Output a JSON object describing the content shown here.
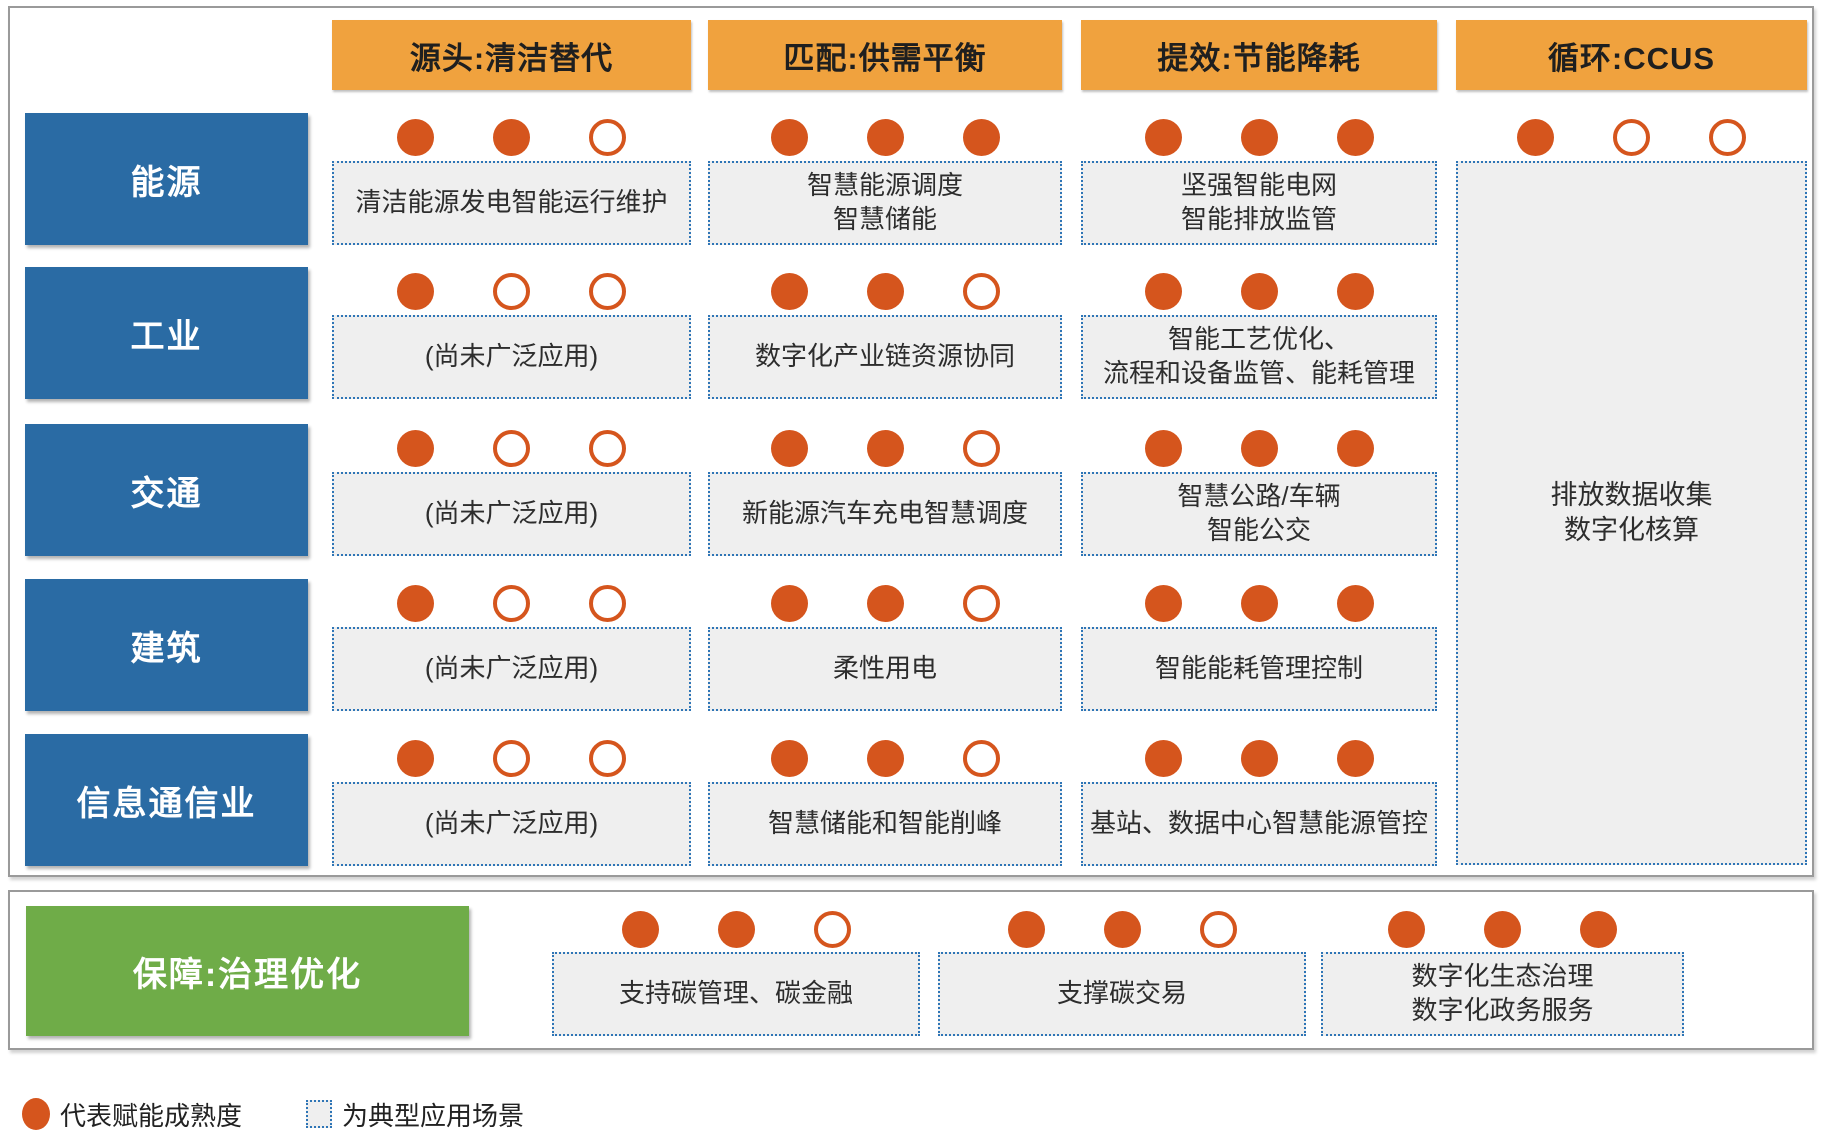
{
  "panel": {
    "col_headers": [
      "源头:清洁替代",
      "匹配:供需平衡",
      "提效:节能降耗",
      "循环:CCUS"
    ],
    "rows": [
      {
        "sector": "能源",
        "cells": [
          {
            "dots": [
              1,
              1,
              0
            ],
            "text": "清洁能源发电智能运行维护"
          },
          {
            "dots": [
              1,
              1,
              1
            ],
            "text": "智慧能源调度\n智慧储能"
          },
          {
            "dots": [
              1,
              1,
              1
            ],
            "text": "坚强智能电网\n智能排放监管"
          }
        ]
      },
      {
        "sector": "工业",
        "cells": [
          {
            "dots": [
              1,
              0,
              0
            ],
            "text": "(尚未广泛应用)"
          },
          {
            "dots": [
              1,
              1,
              0
            ],
            "text": "数字化产业链资源协同"
          },
          {
            "dots": [
              1,
              1,
              1
            ],
            "text": "智能工艺优化、\n流程和设备监管、能耗管理"
          }
        ]
      },
      {
        "sector": "交通",
        "cells": [
          {
            "dots": [
              1,
              0,
              0
            ],
            "text": "(尚未广泛应用)"
          },
          {
            "dots": [
              1,
              1,
              0
            ],
            "text": "新能源汽车充电智慧调度"
          },
          {
            "dots": [
              1,
              1,
              1
            ],
            "text": "智慧公路/车辆\n智能公交"
          }
        ]
      },
      {
        "sector": "建筑",
        "cells": [
          {
            "dots": [
              1,
              0,
              0
            ],
            "text": "(尚未广泛应用)"
          },
          {
            "dots": [
              1,
              1,
              0
            ],
            "text": "柔性用电"
          },
          {
            "dots": [
              1,
              1,
              1
            ],
            "text": "智能能耗管理控制"
          }
        ]
      },
      {
        "sector": "信息通信业",
        "cells": [
          {
            "dots": [
              1,
              0,
              0
            ],
            "text": "(尚未广泛应用)"
          },
          {
            "dots": [
              1,
              1,
              0
            ],
            "text": "智慧储能和智能削峰"
          },
          {
            "dots": [
              1,
              1,
              1
            ],
            "text": "基站、数据中心智慧能源管控"
          }
        ]
      }
    ],
    "ccus": {
      "dots": [
        1,
        0,
        0
      ],
      "text": "排放数据收集\n数字化核算"
    }
  },
  "support": {
    "header": "保障:治理优化",
    "cells": [
      {
        "dots": [
          1,
          1,
          0
        ],
        "text": "支持碳管理、碳金融"
      },
      {
        "dots": [
          1,
          1,
          0
        ],
        "text": "支撑碳交易"
      },
      {
        "dots": [
          1,
          1,
          1
        ],
        "text": "数字化生态治理\n数字化政务服务"
      }
    ]
  },
  "legend": {
    "maturity": "代表赋能成熟度",
    "scenario": "为典型应用场景"
  },
  "colors": {
    "header_orange": "#F0A23E",
    "dot_orange": "#D5551D",
    "sector_blue": "#2A6BA4",
    "support_green": "#6FAC48",
    "dashed_border_blue": "#2E75B6",
    "cell_bg": "#EFEFEF"
  }
}
